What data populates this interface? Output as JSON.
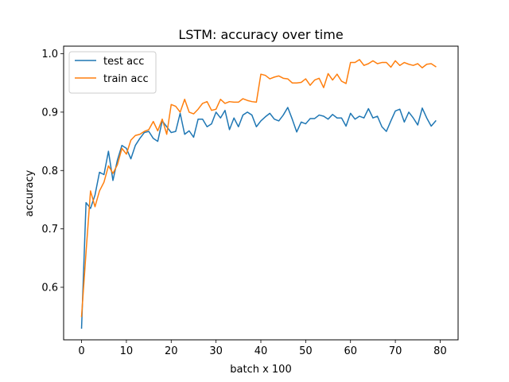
{
  "chart_data": {
    "type": "line",
    "title": "LSTM: accuracy over time",
    "xlabel": "batch x 100",
    "ylabel": "accuracy",
    "xlim": [
      -4,
      84
    ],
    "ylim": [
      0.51,
      1.013
    ],
    "xticks": [
      0,
      10,
      20,
      30,
      40,
      50,
      60,
      70,
      80
    ],
    "yticks": [
      0.6,
      0.7,
      0.8,
      0.9,
      1.0
    ],
    "ytick_labels": [
      "0.6",
      "0.7",
      "0.8",
      "0.9",
      "1.0"
    ],
    "grid": false,
    "legend_position": "top-left",
    "x": [
      0,
      1,
      2,
      3,
      4,
      5,
      6,
      7,
      8,
      9,
      10,
      11,
      12,
      13,
      14,
      15,
      16,
      17,
      18,
      19,
      20,
      21,
      22,
      23,
      24,
      25,
      26,
      27,
      28,
      29,
      30,
      31,
      32,
      33,
      34,
      35,
      36,
      37,
      38,
      39,
      40,
      41,
      42,
      43,
      44,
      45,
      46,
      47,
      48,
      49,
      50,
      51,
      52,
      53,
      54,
      55,
      56,
      57,
      58,
      59,
      60,
      61,
      62,
      63,
      64,
      65,
      66,
      67,
      68,
      69,
      70,
      71,
      72,
      73,
      74,
      75,
      76,
      77,
      78,
      79
    ],
    "series": [
      {
        "name": "test acc",
        "color": "#1f77b4",
        "values": [
          0.53,
          0.745,
          0.735,
          0.758,
          0.797,
          0.793,
          0.833,
          0.783,
          0.818,
          0.843,
          0.838,
          0.82,
          0.843,
          0.855,
          0.865,
          0.867,
          0.855,
          0.85,
          0.885,
          0.875,
          0.865,
          0.867,
          0.898,
          0.862,
          0.868,
          0.857,
          0.888,
          0.888,
          0.875,
          0.88,
          0.9,
          0.89,
          0.903,
          0.87,
          0.89,
          0.875,
          0.895,
          0.9,
          0.895,
          0.875,
          0.885,
          0.892,
          0.898,
          0.888,
          0.885,
          0.895,
          0.908,
          0.888,
          0.866,
          0.883,
          0.88,
          0.889,
          0.889,
          0.895,
          0.893,
          0.888,
          0.896,
          0.89,
          0.89,
          0.876,
          0.898,
          0.888,
          0.893,
          0.89,
          0.906,
          0.89,
          0.893,
          0.875,
          0.867,
          0.885,
          0.902,
          0.905,
          0.883,
          0.9,
          0.89,
          0.878,
          0.907,
          0.89,
          0.876,
          0.885
        ]
      },
      {
        "name": "train acc",
        "color": "#ff7f0e",
        "values": [
          0.55,
          0.66,
          0.765,
          0.738,
          0.765,
          0.78,
          0.808,
          0.795,
          0.81,
          0.838,
          0.828,
          0.852,
          0.86,
          0.862,
          0.867,
          0.87,
          0.884,
          0.868,
          0.888,
          0.862,
          0.913,
          0.91,
          0.9,
          0.922,
          0.9,
          0.897,
          0.905,
          0.915,
          0.918,
          0.903,
          0.905,
          0.922,
          0.915,
          0.918,
          0.917,
          0.917,
          0.923,
          0.92,
          0.918,
          0.917,
          0.965,
          0.963,
          0.957,
          0.96,
          0.962,
          0.958,
          0.957,
          0.95,
          0.95,
          0.951,
          0.957,
          0.946,
          0.955,
          0.958,
          0.942,
          0.966,
          0.955,
          0.965,
          0.953,
          0.949,
          0.985,
          0.985,
          0.99,
          0.98,
          0.983,
          0.988,
          0.983,
          0.985,
          0.985,
          0.977,
          0.988,
          0.98,
          0.985,
          0.982,
          0.98,
          0.983,
          0.976,
          0.982,
          0.983,
          0.978
        ]
      }
    ]
  }
}
